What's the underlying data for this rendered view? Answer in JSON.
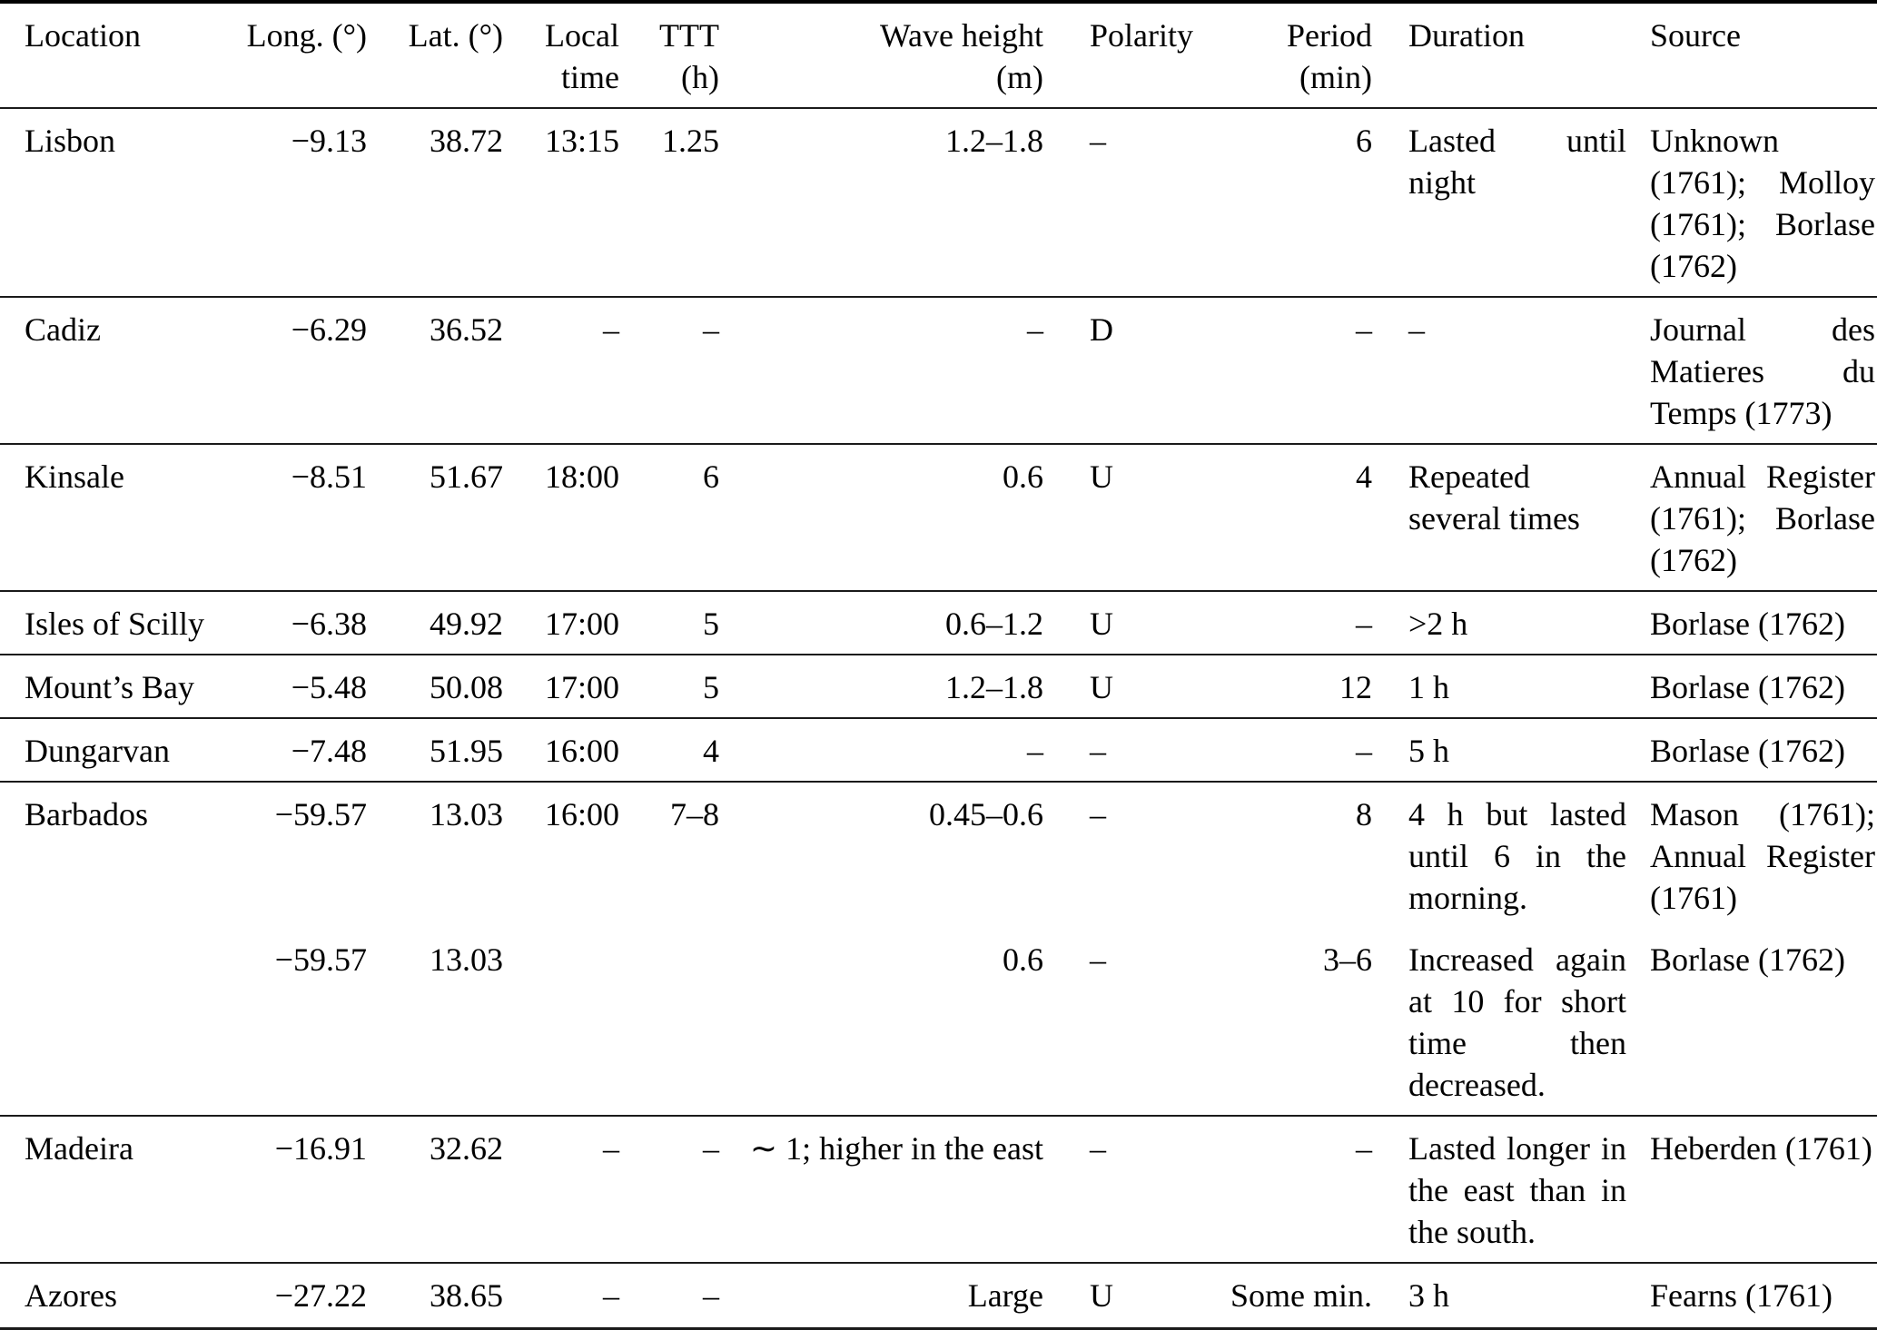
{
  "table": {
    "columns": [
      {
        "id": "location",
        "lines": [
          "Location"
        ]
      },
      {
        "id": "longitude",
        "lines": [
          "Long. (°)"
        ]
      },
      {
        "id": "latitude",
        "lines": [
          "Lat. (°)"
        ]
      },
      {
        "id": "local_time",
        "lines": [
          "Local",
          "time"
        ]
      },
      {
        "id": "ttt",
        "lines": [
          "TTT",
          "(h)"
        ]
      },
      {
        "id": "wave_height",
        "lines": [
          "Wave height",
          "(m)"
        ]
      },
      {
        "id": "polarity",
        "lines": [
          "Polarity"
        ]
      },
      {
        "id": "period",
        "lines": [
          "Period",
          "(min)"
        ]
      },
      {
        "id": "duration",
        "lines": [
          "Duration"
        ]
      },
      {
        "id": "source",
        "lines": [
          "Source"
        ]
      }
    ],
    "rows": [
      {
        "location": "Lisbon",
        "longitude": "−9.13",
        "latitude": "38.72",
        "local_time": "13:15",
        "ttt": "1.25",
        "wave_height": "1.2–1.8",
        "polarity": "–",
        "period": "6",
        "duration": "Lasted until night",
        "source": "Unknown (1761); Molloy (1761); Borlase (1762)"
      },
      {
        "location": "Cadiz",
        "longitude": "−6.29",
        "latitude": "36.52",
        "local_time": "–",
        "ttt": "–",
        "wave_height": "–",
        "polarity": "D",
        "period": "–",
        "duration": "–",
        "source": "Journal des Matieres du Temps (1773)"
      },
      {
        "location": "Kinsale",
        "longitude": "−8.51",
        "latitude": "51.67",
        "local_time": "18:00",
        "ttt": "6",
        "wave_height": "0.6",
        "polarity": "U",
        "period": "4",
        "duration": "Repeated several times",
        "source": "Annual Register (1761); Borlase (1762)"
      },
      {
        "location": "Isles of Scilly",
        "longitude": "−6.38",
        "latitude": "49.92",
        "local_time": "17:00",
        "ttt": "5",
        "wave_height": "0.6–1.2",
        "polarity": "U",
        "period": "–",
        "duration": ">2 h",
        "source": "Borlase (1762)"
      },
      {
        "location": "Mount’s Bay",
        "longitude": "−5.48",
        "latitude": "50.08",
        "local_time": "17:00",
        "ttt": "5",
        "wave_height": "1.2–1.8",
        "polarity": "U",
        "period": "12",
        "duration": "1 h",
        "source": "Borlase (1762)"
      },
      {
        "location": "Dungarvan",
        "longitude": "−7.48",
        "latitude": "51.95",
        "local_time": "16:00",
        "ttt": "4",
        "wave_height": "–",
        "polarity": "–",
        "period": "–",
        "duration": "5 h",
        "source": "Borlase (1762)"
      },
      {
        "location": "Barbados",
        "longitude": "−59.57",
        "latitude": "13.03",
        "local_time": "16:00",
        "ttt": "7–8",
        "wave_height": "0.45–0.6",
        "polarity": "–",
        "period": "8",
        "duration": "4 h but lasted until 6 in the morning.",
        "source": "Mason (1761); Annual Register (1761)"
      },
      {
        "location": "",
        "longitude": "−59.57",
        "latitude": "13.03",
        "local_time": "",
        "ttt": "",
        "wave_height": "0.6",
        "polarity": "–",
        "period": "3–6",
        "duration": "Increased again at 10 for short time then decreased.",
        "source": "Borlase (1762)"
      },
      {
        "location": "Madeira",
        "longitude": "−16.91",
        "latitude": "32.62",
        "local_time": "–",
        "ttt": "–",
        "wave_height": "∼ 1; higher in the east",
        "polarity": "–",
        "period": "–",
        "duration": "Lasted longer in the east than in the south.",
        "source": "Heberden (1761)"
      },
      {
        "location": "Azores",
        "longitude": "−27.22",
        "latitude": "38.65",
        "local_time": "–",
        "ttt": "–",
        "wave_height": "Large",
        "polarity": "U",
        "period": "Some min.",
        "duration": "3 h",
        "source": "Fearns (1761)"
      }
    ]
  }
}
